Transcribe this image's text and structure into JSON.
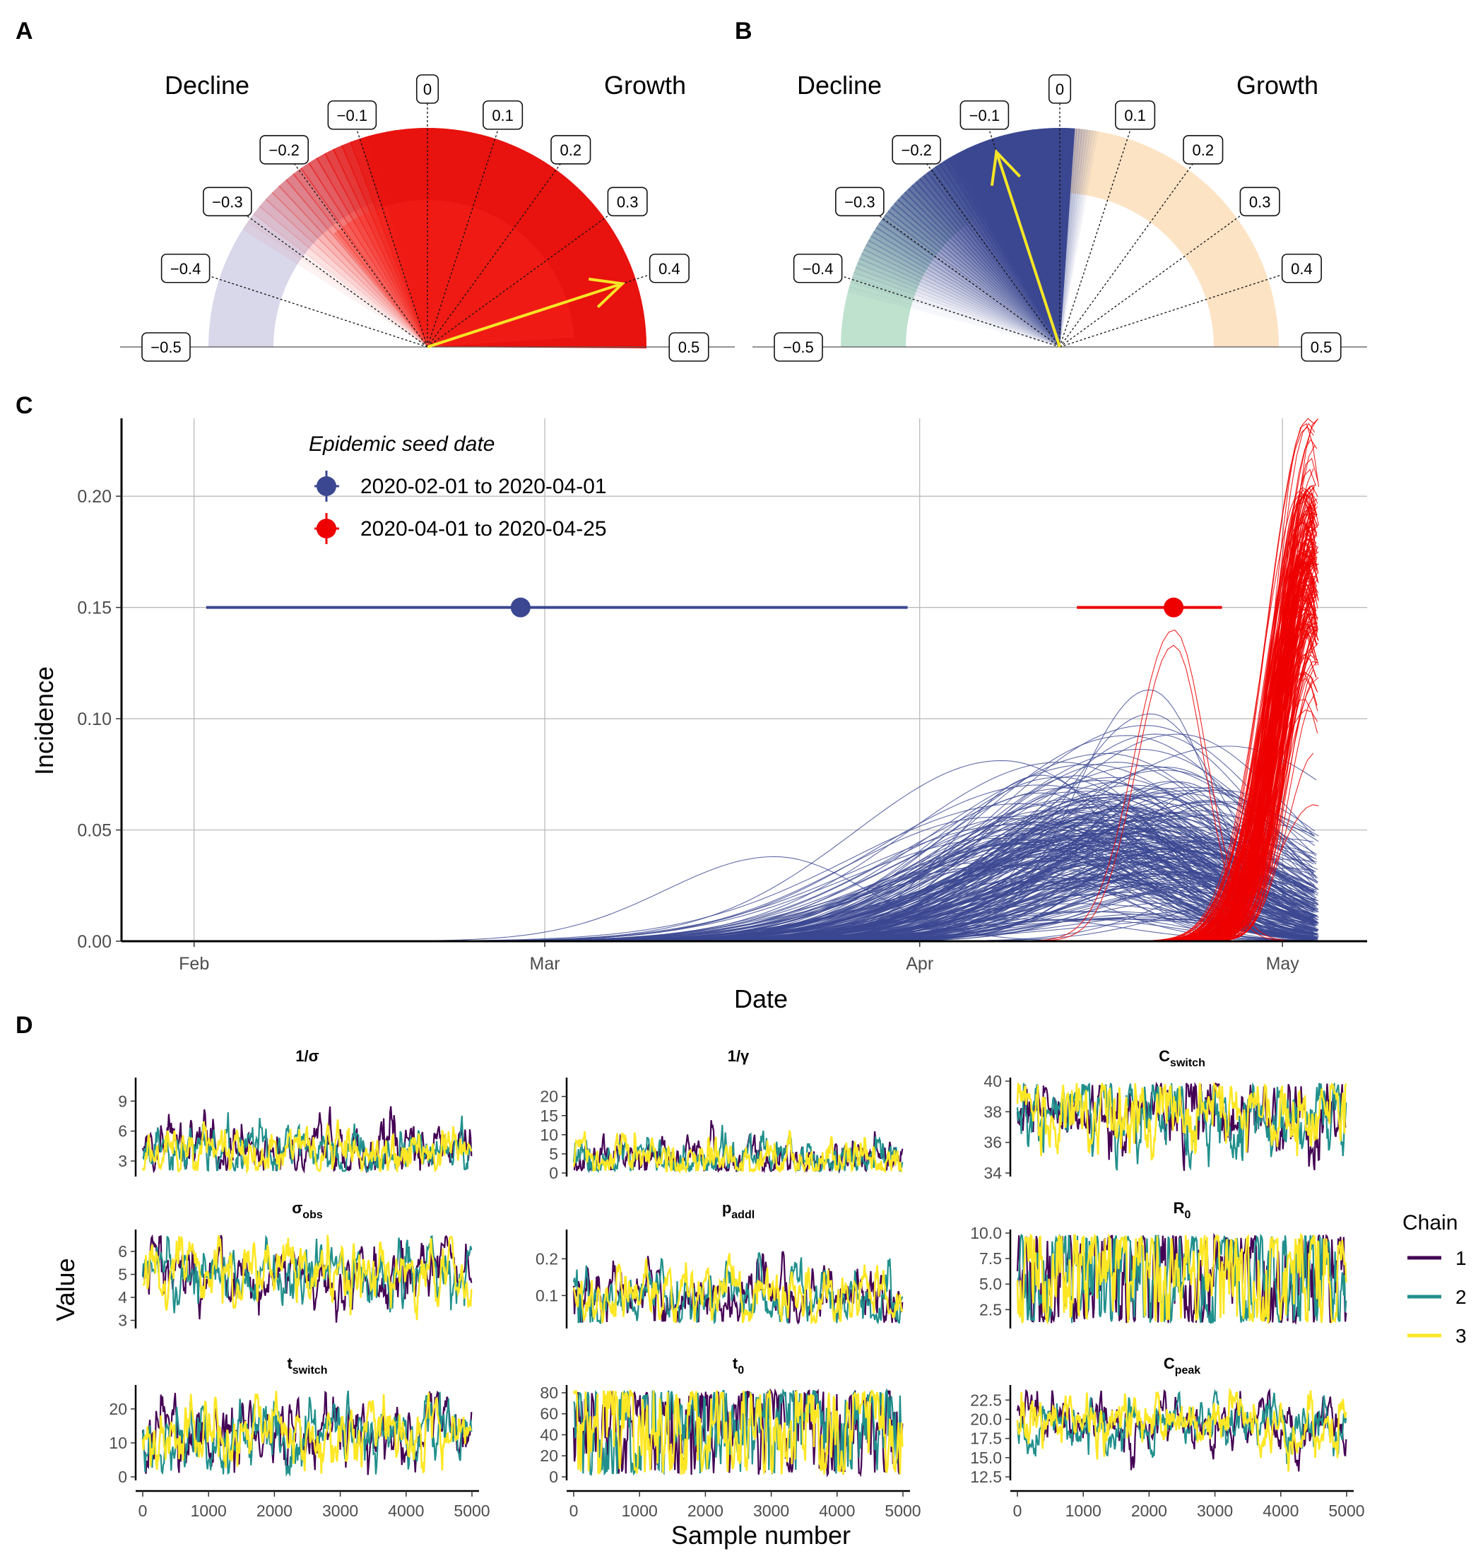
{
  "panels": {
    "a": "A",
    "b": "B",
    "c": "C",
    "d": "D"
  },
  "colors": {
    "red": "#ee0000",
    "blue": "#3b4791",
    "yellow": "#f5e626",
    "lavender": "#d9d7ea",
    "mint": "#bfe2cf",
    "peach": "#fce3c4",
    "chain1": "#440154",
    "chain2": "#21908c",
    "chain3": "#fde725"
  },
  "chart_data": [
    {
      "panel": "A",
      "type": "gauge",
      "left_text": "Decline",
      "right_text": "Growth",
      "dial_labels": [
        "−0.5",
        "−0.4",
        "−0.3",
        "−0.2",
        "−0.1",
        "0",
        "0.1",
        "0.2",
        "0.3",
        "0.4",
        "0.5"
      ],
      "range": [
        -0.5,
        0.5
      ],
      "pointer_value": 0.4,
      "colors_note": "red"
    },
    {
      "panel": "B",
      "type": "gauge",
      "left_text": "Decline",
      "right_text": "Growth",
      "dial_labels": [
        "−0.5",
        "−0.4",
        "−0.3",
        "−0.2",
        "−0.1",
        "0",
        "0.1",
        "0.2",
        "0.3",
        "0.4",
        "0.5"
      ],
      "range": [
        -0.5,
        0.5
      ],
      "pointer_value": -0.1
    },
    {
      "panel": "C",
      "type": "line",
      "xlabel": "Date",
      "ylabel": "Incidence",
      "x_ticks": [
        "Feb",
        "Mar",
        "Apr",
        "May"
      ],
      "x_tick_dates": [
        "2020-02-01",
        "2020-03-01",
        "2020-04-01",
        "2020-05-01"
      ],
      "y_ticks": [
        "0.00",
        "0.05",
        "0.10",
        "0.15",
        "0.20"
      ],
      "ylim": [
        0,
        0.235
      ],
      "xlim": [
        "2020-01-26",
        "2020-05-08"
      ],
      "grid": true,
      "legend_title": "Epidemic seed date",
      "legend_position": "top-left",
      "series": [
        {
          "name": "2020-02-01 to 2020-04-01",
          "color": "#3b4791",
          "seed_point": "2020-02-28",
          "seed_interval": [
            "2020-02-02",
            "2020-03-31"
          ],
          "y_marker": 0.15,
          "curves": 250,
          "typical_peak_date": "2020-04-18",
          "typical_peak": 0.05,
          "max_peak": 0.113
        },
        {
          "name": "2020-04-01 to 2020-04-25",
          "color": "#ee0000",
          "seed_point": "2020-04-22",
          "seed_interval": [
            "2020-04-14",
            "2020-04-26"
          ],
          "y_marker": 0.15,
          "curves": 200,
          "typical_peak_date": "2020-05-02",
          "typical_peak": 0.17,
          "max_peak": 0.235
        }
      ]
    },
    {
      "panel": "D",
      "type": "line",
      "xlabel": "Sample number",
      "ylabel": "Value",
      "x_ticks": [
        "0",
        "1000",
        "2000",
        "3000",
        "4000",
        "5000"
      ],
      "legend_title": "Chain",
      "legend_entries": [
        "1",
        "2",
        "3"
      ],
      "facets": [
        {
          "title_main": "1/σ",
          "title_sub": "",
          "y_ticks": [
            "3",
            "6",
            "9"
          ],
          "ylim": [
            1.8,
            11
          ],
          "mean": 4.2,
          "spread": 1.2
        },
        {
          "title_main": "1/γ",
          "title_sub": "",
          "y_ticks": [
            "0",
            "5",
            "10",
            "15",
            "20"
          ],
          "ylim": [
            0,
            24
          ],
          "mean": 3.5,
          "spread": 2.5
        },
        {
          "title_main": "C",
          "title_sub": "switch",
          "y_ticks": [
            "34",
            "36",
            "38",
            "40"
          ],
          "ylim": [
            34,
            40
          ],
          "mean": 38.0,
          "spread": 1.2
        },
        {
          "title_main": "σ",
          "title_sub": "obs",
          "y_ticks": [
            "3",
            "4",
            "5",
            "6"
          ],
          "ylim": [
            2.8,
            6.8
          ],
          "mean": 5.0,
          "spread": 0.6
        },
        {
          "title_main": "p",
          "title_sub": "addl",
          "y_ticks": [
            "0.1",
            "0.2"
          ],
          "ylim": [
            0.02,
            0.27
          ],
          "mean": 0.1,
          "spread": 0.035
        },
        {
          "title_main": "R",
          "title_sub": "0",
          "y_ticks": [
            "2.5",
            "5.0",
            "7.5",
            "10.0"
          ],
          "ylim": [
            1.0,
            10.0
          ],
          "mean": 6.0,
          "spread": 3.5
        },
        {
          "title_main": "t",
          "title_sub": "switch",
          "y_ticks": [
            "0",
            "10",
            "20"
          ],
          "ylim": [
            0,
            26
          ],
          "mean": 13,
          "spread": 4.5
        },
        {
          "title_main": "t",
          "title_sub": "0",
          "y_ticks": [
            "0",
            "20",
            "40",
            "60",
            "80"
          ],
          "ylim": [
            0,
            84
          ],
          "mean": 55,
          "spread": 30
        },
        {
          "title_main": "C",
          "title_sub": "peak",
          "y_ticks": [
            "12.5",
            "15.0",
            "17.5",
            "20.0",
            "22.5"
          ],
          "ylim": [
            12.5,
            24
          ],
          "mean": 19.5,
          "spread": 1.6
        }
      ]
    }
  ]
}
